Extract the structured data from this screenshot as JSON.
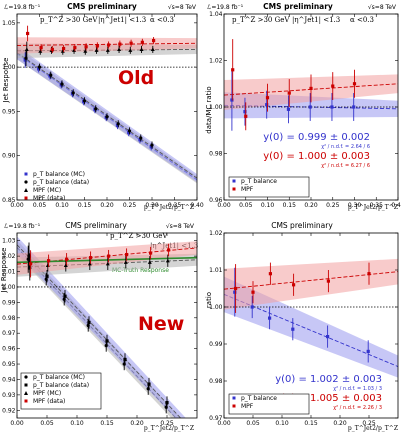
{
  "chart_data": [
    {
      "id": "top-left",
      "type": "scatter",
      "header_left": "ℒ=19.8 fb⁻¹",
      "header_center": "CMS preliminary",
      "header_right": "√s=8 TeV",
      "cuts": [
        "p_T^Z >30 GeV",
        "|η^Jet1| <1.3",
        "α <0.3"
      ],
      "ylabel": "Jet Response",
      "xlabel": "p_T^Jet2/p_T^Z",
      "xlim": [
        0,
        0.4
      ],
      "ylim": [
        0.85,
        1.06
      ],
      "xticks": [
        "0.00",
        "0.05",
        "0.10",
        "0.15",
        "0.20",
        "0.25",
        "0.30",
        "0.35",
        "0.40"
      ],
      "yticks": [
        "0.85",
        "0.90",
        "0.95",
        "1.00",
        "1.05"
      ],
      "annotation": "Old",
      "legend": [
        "p_T balance (MC)",
        "p_T balance (data)",
        "MPF (MC)",
        "MPF (data)"
      ],
      "series": [
        {
          "name": "p_T balance (MC)",
          "x": [
            0.02,
            0.05,
            0.075,
            0.1,
            0.125,
            0.15,
            0.175,
            0.2,
            0.225,
            0.25,
            0.275,
            0.3
          ],
          "y": [
            1.008,
            0.998,
            0.99,
            0.98,
            0.97,
            0.961,
            0.952,
            0.943,
            0.934,
            0.926,
            0.918,
            0.91
          ]
        },
        {
          "name": "p_T balance (data)",
          "x": [
            0.02,
            0.05,
            0.075,
            0.1,
            0.125,
            0.15,
            0.175,
            0.2,
            0.225,
            0.25,
            0.275,
            0.3
          ],
          "y": [
            1.01,
            1.0,
            0.991,
            0.981,
            0.971,
            0.962,
            0.953,
            0.944,
            0.936,
            0.928,
            0.92,
            0.912
          ]
        },
        {
          "name": "MPF (MC)",
          "x": [
            0.02,
            0.05,
            0.075,
            0.1,
            0.125,
            0.15,
            0.175,
            0.2,
            0.225,
            0.25,
            0.275,
            0.3
          ],
          "y": [
            1.02,
            1.018,
            1.019,
            1.018,
            1.019,
            1.018,
            1.019,
            1.019,
            1.02,
            1.019,
            1.02,
            1.02
          ]
        },
        {
          "name": "MPF (data)",
          "x": [
            0.02,
            0.05,
            0.075,
            0.1,
            0.125,
            0.15,
            0.175,
            0.2,
            0.225,
            0.25,
            0.275,
            0.3
          ],
          "y": [
            1.038,
            1.022,
            1.02,
            1.021,
            1.022,
            1.023,
            1.024,
            1.025,
            1.026,
            1.027,
            1.028,
            1.03
          ]
        }
      ]
    },
    {
      "id": "top-right",
      "type": "scatter",
      "header_left": "ℒ=19.8 fb⁻¹",
      "header_center": "CMS preliminary",
      "header_right": "√s=8 TeV",
      "cuts": [
        "p_T^Z >30 GeV",
        "|η^Jet1| <1.3",
        "α <0.3"
      ],
      "ylabel": "data/MC ratio",
      "xlabel": "p_T^Jet2/p_T^Z",
      "xlim": [
        0,
        0.4
      ],
      "ylim": [
        0.96,
        1.04
      ],
      "xticks": [
        "0.00",
        "0.05",
        "0.10",
        "0.15",
        "0.20",
        "0.25",
        "0.30",
        "0.35",
        "0.40"
      ],
      "yticks": [
        "0.96",
        "0.98",
        "1.00",
        "1.02",
        "1.04"
      ],
      "legend": [
        "p_T balance",
        "MPF"
      ],
      "fits": [
        {
          "name": "p_T balance",
          "text": "y(0) = 0.999 ± 0.002",
          "chi2": "χ² / n.d.f. = 2.64 / 6",
          "color": "#3333cc"
        },
        {
          "name": "MPF",
          "text": "y(0) = 1.000 ± 0.003",
          "chi2": "χ² / n.d.f. = 6.27 / 6",
          "color": "#cc0000"
        }
      ],
      "series": [
        {
          "name": "p_T balance",
          "x": [
            0.02,
            0.05,
            0.1,
            0.15,
            0.2,
            0.25,
            0.3
          ],
          "y": [
            1.003,
            0.998,
            1.001,
            0.999,
            1.0,
            1.0,
            1.0
          ]
        },
        {
          "name": "MPF",
          "x": [
            0.02,
            0.05,
            0.1,
            0.15,
            0.2,
            0.25,
            0.3
          ],
          "y": [
            1.016,
            0.996,
            1.004,
            1.006,
            1.008,
            1.009,
            1.01
          ]
        }
      ]
    },
    {
      "id": "bottom-left",
      "type": "scatter",
      "header_left": "ℒ=19.8 fb⁻¹",
      "header_center": "CMS preliminary",
      "header_right": "√s=8 TeV",
      "cuts": [
        "p_T^Z >30 GeV",
        "|η^Jet1| <1.3"
      ],
      "ylabel": "Jet Response",
      "xlabel": "p_T^Jet2/p_T^Z",
      "xlim": [
        0,
        0.3
      ],
      "ylim": [
        0.915,
        1.035
      ],
      "xticks": [
        "0.00",
        "0.05",
        "0.10",
        "0.15",
        "0.20",
        "0.25"
      ],
      "yticks": [
        "0.92",
        "0.93",
        "0.94",
        "0.95",
        "0.96",
        "0.97",
        "0.98",
        "0.99",
        "1.00",
        "1.01",
        "1.02",
        "1.03"
      ],
      "annotation": "New",
      "mc_truth_label": "MC-Truth Response",
      "legend": [
        "p_T balance (MC)",
        "p_T balance (data)",
        "MPF (MC)",
        "MPF (data)"
      ],
      "series": [
        {
          "name": "p_T balance (MC)",
          "x": [
            0.02,
            0.05,
            0.08,
            0.12,
            0.15,
            0.18,
            0.22,
            0.25
          ],
          "y": [
            1.018,
            1.005,
            0.992,
            0.975,
            0.962,
            0.95,
            0.934,
            0.922
          ]
        },
        {
          "name": "p_T balance (data)",
          "x": [
            0.02,
            0.05,
            0.08,
            0.12,
            0.15,
            0.18,
            0.22,
            0.25
          ],
          "y": [
            1.02,
            1.007,
            0.994,
            0.977,
            0.965,
            0.953,
            0.937,
            0.925
          ]
        },
        {
          "name": "MPF (MC)",
          "x": [
            0.02,
            0.05,
            0.08,
            0.12,
            0.15,
            0.18,
            0.22,
            0.25
          ],
          "y": [
            1.013,
            1.014,
            1.014,
            1.015,
            1.015,
            1.016,
            1.016,
            1.017
          ]
        },
        {
          "name": "MPF (data)",
          "x": [
            0.02,
            0.05,
            0.08,
            0.12,
            0.15,
            0.18,
            0.22,
            0.25
          ],
          "y": [
            1.015,
            1.017,
            1.018,
            1.019,
            1.02,
            1.021,
            1.022,
            1.024
          ]
        }
      ]
    },
    {
      "id": "bottom-right",
      "type": "scatter",
      "header_center": "CMS preliminary",
      "ylabel": "ratio",
      "xlabel": "p_T^Jet2/p_T^Z",
      "xlim": [
        0,
        0.3
      ],
      "ylim": [
        0.97,
        1.02
      ],
      "xticks": [
        "0.00",
        "0.05",
        "0.10",
        "0.15",
        "0.20",
        "0.25"
      ],
      "yticks": [
        "0.97",
        "0.98",
        "0.99",
        "1.00",
        "1.01",
        "1.02"
      ],
      "legend": [
        "p_T balance",
        "MPF"
      ],
      "fits": [
        {
          "name": "p_T balance",
          "text": "y(0) = 1.002 ± 0.003",
          "chi2": "χ² / n.d.f. = 1.03 / 3",
          "color": "#3333cc"
        },
        {
          "name": "MPF",
          "text": "y(0) = 1.005 ± 0.003",
          "chi2": "χ² / n.d.f. = 2.26 / 3",
          "color": "#cc0000"
        }
      ],
      "series": [
        {
          "name": "p_T balance",
          "x": [
            0.02,
            0.05,
            0.08,
            0.12,
            0.18,
            0.25
          ],
          "y": [
            1.004,
            1.0,
            0.997,
            0.994,
            0.992,
            0.988
          ]
        },
        {
          "name": "MPF",
          "x": [
            0.02,
            0.05,
            0.08,
            0.12,
            0.18,
            0.25
          ],
          "y": [
            1.005,
            1.004,
            1.009,
            1.006,
            1.007,
            1.009
          ]
        }
      ]
    }
  ],
  "colors": {
    "blue": "#3333cc",
    "red": "#cc0000",
    "green": "#2e8b2e",
    "band_blue": "#9999ee",
    "band_red": "#f2a0a0",
    "band_grey": "#b0b0b0"
  }
}
